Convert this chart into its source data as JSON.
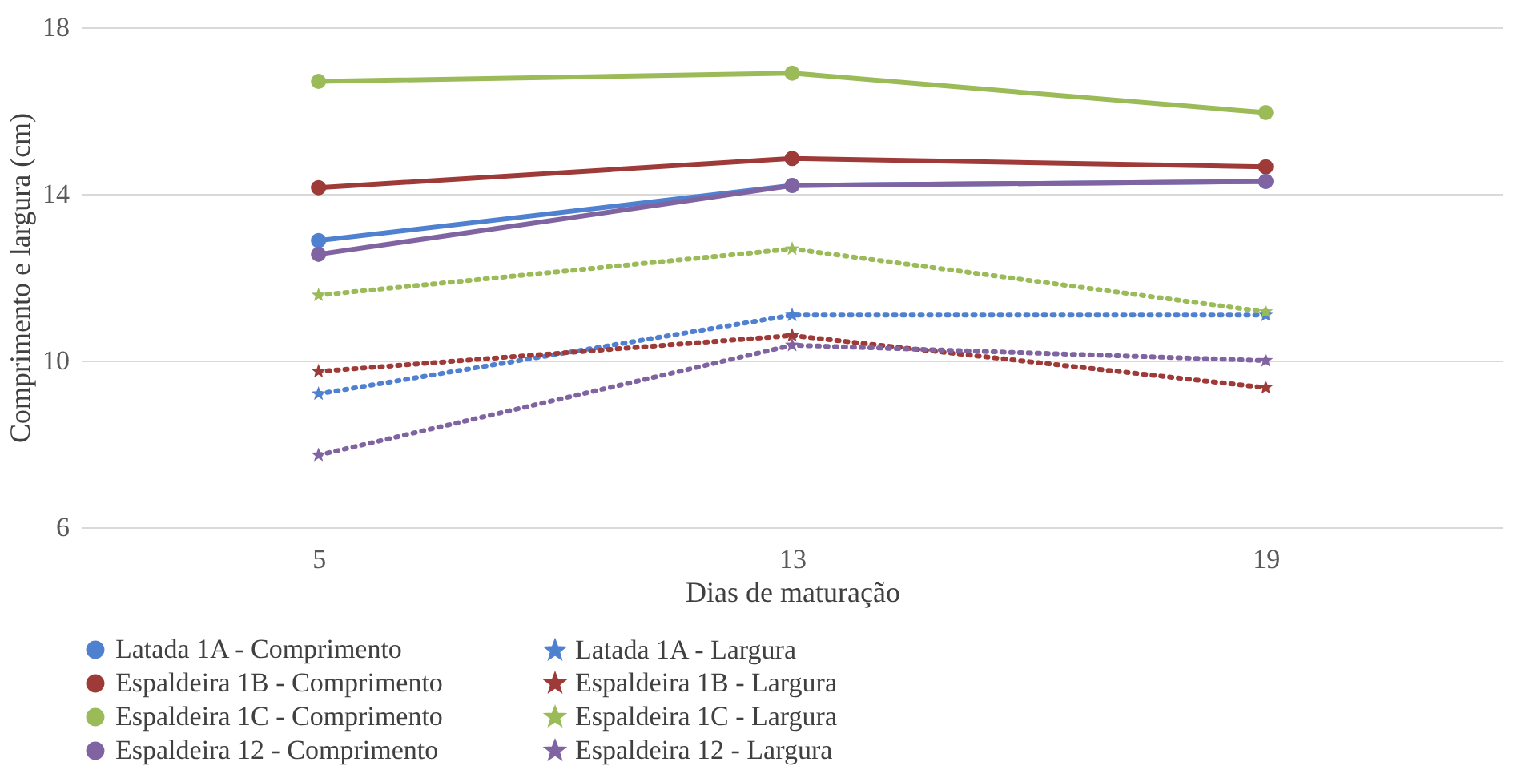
{
  "chart_data": {
    "type": "line",
    "xlabel": "Dias de maturação",
    "ylabel": "Comprimento e largura (cm)",
    "categories": [
      "5",
      "13",
      "19"
    ],
    "ylim": [
      6,
      18
    ],
    "yticks": [
      6,
      10,
      14,
      18
    ],
    "grid": "y",
    "legend": "bottom",
    "series": [
      {
        "name": "Latada 1A - Comprimento",
        "color": "#4f81d0",
        "values": [
          12.88,
          14.2,
          14.3
        ],
        "marker": "circle",
        "line_style": "solid"
      },
      {
        "name": "Latada 1A - Largura",
        "color": "#4f81d0",
        "values": [
          9.2,
          11.09,
          11.09
        ],
        "marker": "star",
        "line_style": "dotted"
      },
      {
        "name": "Espaldeira 1B - Comprimento",
        "color": "#9e3a38",
        "values": [
          14.15,
          14.85,
          14.65
        ],
        "marker": "circle",
        "line_style": "solid"
      },
      {
        "name": "Espaldeira 1B - Largura",
        "color": "#9e3a38",
        "values": [
          9.74,
          10.6,
          9.35
        ],
        "marker": "star",
        "line_style": "dotted"
      },
      {
        "name": "Espaldeira 1C - Comprimento",
        "color": "#9bbb59",
        "values": [
          16.7,
          16.9,
          15.95
        ],
        "marker": "circle",
        "line_style": "solid"
      },
      {
        "name": "Espaldeira 1C - Largura",
        "color": "#9bbb59",
        "values": [
          11.57,
          12.68,
          11.17
        ],
        "marker": "star",
        "line_style": "dotted"
      },
      {
        "name": "Espaldeira 12 - Comprimento",
        "color": "#8064a2",
        "values": [
          12.55,
          14.2,
          14.3
        ],
        "marker": "circle",
        "line_style": "solid"
      },
      {
        "name": "Espaldeira 12 - Largura",
        "color": "#8064a2",
        "values": [
          7.73,
          10.37,
          10.0
        ],
        "marker": "star",
        "line_style": "dotted"
      }
    ]
  }
}
